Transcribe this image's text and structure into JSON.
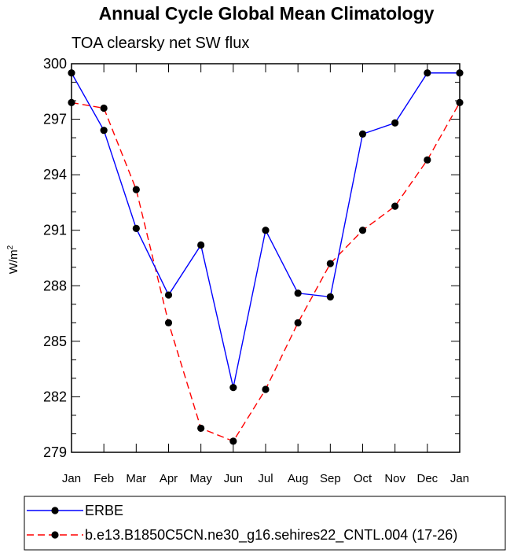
{
  "chart_data": {
    "type": "line",
    "title": "Annual Cycle Global Mean Climatology",
    "subtitle": "TOA clearsky net SW flux",
    "xlabel": "",
    "ylabel": "W/m",
    "ylabel_sup": "2",
    "ylim": [
      279,
      300
    ],
    "yticks": [
      279,
      282,
      285,
      288,
      291,
      294,
      297,
      300
    ],
    "ytick_labels": [
      "279",
      "282",
      "285",
      "288",
      "291",
      "294",
      "297",
      "300"
    ],
    "categories": [
      "Jan",
      "Feb",
      "Mar",
      "Apr",
      "May",
      "Jun",
      "Jul",
      "Aug",
      "Sep",
      "Oct",
      "Nov",
      "Dec",
      "Jan"
    ],
    "series": [
      {
        "name": "ERBE",
        "color": "#0000ff",
        "style": "solid",
        "values": [
          299.5,
          296.4,
          291.1,
          287.5,
          290.2,
          282.5,
          291.0,
          287.6,
          287.4,
          296.2,
          296.8,
          299.5,
          299.5
        ]
      },
      {
        "name": "b.e13.B1850C5CN.ne30_g16.sehires22_CNTL.004 (17-26)",
        "color": "#ff0000",
        "style": "dashed",
        "values": [
          297.9,
          297.6,
          293.2,
          286.0,
          280.3,
          279.6,
          282.4,
          286.0,
          289.2,
          291.0,
          292.3,
          294.8,
          297.9
        ]
      }
    ],
    "legend_position": "bottom"
  }
}
